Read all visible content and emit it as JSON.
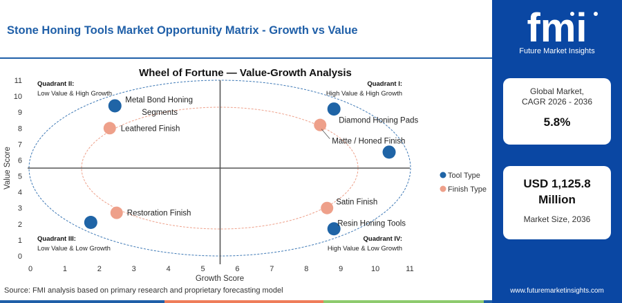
{
  "page": {
    "header_title": "Stone Honing Tools Market Opportunity Matrix - Growth vs Value",
    "source": "Source: FMI analysis based on primary research and proprietary forecasting model"
  },
  "sidebar": {
    "logo_text": "fmi",
    "brand_name": "Future Market Insights",
    "cagr_label_line1": "Global Market,",
    "cagr_label_line2": "CAGR 2026 - 2036",
    "cagr_value": "5.8%",
    "size_value_line1": "USD 1,125.8",
    "size_value_line2": "Million",
    "size_label": "Market Size, 2036",
    "website": "www.futuremarketinsights.com"
  },
  "colors": {
    "brand_blue": "#0a47a3",
    "tool_type": "#1f64a6",
    "finish_type": "#eea08a",
    "axis_divider": "#555555",
    "footer_segments": [
      "#1f5fa8",
      "#ef7d5a",
      "#8ecb6e",
      "#1f5fa8"
    ]
  },
  "chart_data": {
    "type": "scatter",
    "title": "Wheel of Fortune — Value-Growth Analysis",
    "xlabel": "Growth Score",
    "ylabel": "Value Score",
    "xlim": [
      0,
      11
    ],
    "ylim": [
      0,
      11
    ],
    "xticks": [
      0,
      1,
      2,
      3,
      4,
      5,
      6,
      7,
      8,
      9,
      10,
      11
    ],
    "yticks": [
      0,
      1,
      2,
      3,
      4,
      5,
      6,
      7,
      8,
      9,
      10,
      11
    ],
    "divider_x": 5.5,
    "divider_y": 5.5,
    "grid": false,
    "legend_position": "right",
    "quadrants": [
      {
        "title": "Quadrant II:",
        "subtitle": "Low Value & High Growth",
        "position": "top-left"
      },
      {
        "title": "Quadrant I:",
        "subtitle": "High Value & High Growth",
        "position": "top-right"
      },
      {
        "title": "Quadrant III:",
        "subtitle": "Low Value & Low Growth",
        "position": "bottom-left"
      },
      {
        "title": "Quadrant IV:",
        "subtitle": "High Value & Low Growth",
        "position": "bottom-right"
      }
    ],
    "series": [
      {
        "name": "Tool Type",
        "points": [
          {
            "label": "Metal Bond Honing Segments",
            "x": 2.45,
            "y": 9.4
          },
          {
            "label": "Diamond Honing Pads",
            "x": 8.8,
            "y": 9.2
          },
          {
            "label": "",
            "x": 10.4,
            "y": 6.5
          },
          {
            "label": "",
            "x": 1.75,
            "y": 2.1
          },
          {
            "label": "Resin Honing Tools",
            "x": 8.8,
            "y": 1.7
          }
        ]
      },
      {
        "name": "Finish Type",
        "points": [
          {
            "label": "Leathered Finish",
            "x": 2.3,
            "y": 8.0
          },
          {
            "label": "Matte / Honed Finish",
            "x": 8.4,
            "y": 8.2
          },
          {
            "label": "Restoration Finish",
            "x": 2.5,
            "y": 2.7
          },
          {
            "label": "Satin Finish",
            "x": 8.6,
            "y": 3.0
          }
        ]
      }
    ]
  }
}
